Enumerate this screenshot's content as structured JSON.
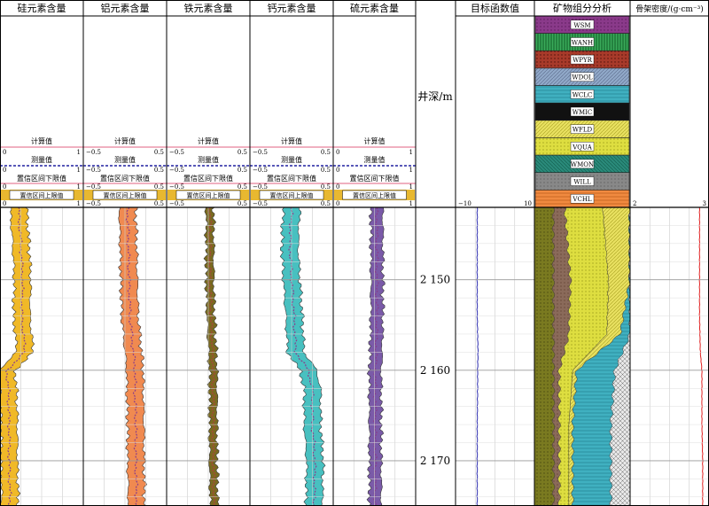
{
  "depth_track": {
    "title": "井深/m",
    "ticks": [
      "2 150",
      "2 160",
      "2 170"
    ],
    "tick_values": [
      2150,
      2160,
      2170
    ]
  },
  "legend_rows": {
    "calc": "计算值",
    "meas": "测量值",
    "lower": "置信区间下限值",
    "upper": "置信区间上限值"
  },
  "element_tracks": [
    {
      "title": "硅元素含量",
      "min": "0",
      "max": "1",
      "fill": "#f0b928",
      "line": "#8a3d8a"
    },
    {
      "title": "铝元素含量",
      "min": "−0.5",
      "max": "0.5",
      "fill": "#f08a50",
      "line": "#8a3d8a"
    },
    {
      "title": "铁元素含量",
      "min": "−0.5",
      "max": "0.5",
      "fill": "#7a6a20",
      "line": "#b04040"
    },
    {
      "title": "钙元素含量",
      "min": "−0.5",
      "max": "0.5",
      "fill": "#48c0c0",
      "line": "#8a3d8a"
    },
    {
      "title": "硫元素含量",
      "min": "0",
      "max": "1",
      "fill": "#7a5aa8",
      "line": "#8a3d8a"
    }
  ],
  "objective_track": {
    "title": "目标函数值",
    "min": "−10",
    "max": "10",
    "color": "#4040c0"
  },
  "mineral_track": {
    "title": "矿物组分分析",
    "minerals": [
      {
        "code": "WSM",
        "color": "#8a3a8a"
      },
      {
        "code": "WANH",
        "color": "#3aaa5a"
      },
      {
        "code": "WPYR",
        "color": "#a83a2a"
      },
      {
        "code": "WDOL",
        "color": "#90a8c8"
      },
      {
        "code": "WCLC",
        "color": "#40b0c0"
      },
      {
        "code": "WMIC",
        "color": "#111111"
      },
      {
        "code": "WFLD",
        "color": "#e8e060"
      },
      {
        "code": "VQUA",
        "color": "#dede40"
      },
      {
        "code": "WMON",
        "color": "#2a8a7a"
      },
      {
        "code": "WILL",
        "color": "#888888"
      },
      {
        "code": "VCHL",
        "color": "#f08a40"
      }
    ]
  },
  "density_track": {
    "title": "骨架密度/(g·cm⁻³)",
    "min": "2",
    "max": "3",
    "color": "#e02020"
  },
  "chart_data": {
    "type": "line",
    "y_axis": {
      "label": "井深/m",
      "range_approx": [
        2142,
        2175
      ],
      "ticks": [
        2150,
        2160,
        2170
      ]
    },
    "depth": [
      2142,
      2146,
      2150,
      2154,
      2158,
      2160,
      2162,
      2166,
      2170,
      2175
    ],
    "series": [
      {
        "name": "硅元素含量",
        "xlim": [
          0,
          1
        ],
        "values": [
          0.22,
          0.25,
          0.27,
          0.26,
          0.3,
          0.08,
          0.1,
          0.11,
          0.11,
          0.12
        ]
      },
      {
        "name": "铝元素含量",
        "xlim": [
          -0.5,
          0.5
        ],
        "values": [
          0.03,
          0.04,
          0.05,
          0.06,
          0.1,
          0.12,
          0.12,
          0.13,
          0.13,
          0.14
        ]
      },
      {
        "name": "铁元素含量",
        "xlim": [
          -0.5,
          0.5
        ],
        "values": [
          0.02,
          0.02,
          0.02,
          0.03,
          0.05,
          0.06,
          0.06,
          0.06,
          0.06,
          0.07
        ]
      },
      {
        "name": "钙元素含量",
        "xlim": [
          -0.5,
          0.5
        ],
        "values": [
          0.0,
          -0.02,
          0.0,
          0.03,
          0.05,
          0.2,
          0.25,
          0.25,
          0.28,
          0.27
        ]
      },
      {
        "name": "硫元素含量",
        "xlim": [
          0,
          1
        ],
        "values": [
          0.53,
          0.53,
          0.53,
          0.53,
          0.52,
          0.51,
          0.51,
          0.51,
          0.51,
          0.51
        ]
      },
      {
        "name": "目标函数值",
        "xlim": [
          -10,
          10
        ],
        "values": [
          -4.5,
          -4.5,
          -4.5,
          -4.5,
          -4.3,
          -4.4,
          -4.4,
          -4.5,
          -4.5,
          -4.5
        ]
      },
      {
        "name": "骨架密度",
        "xlim": [
          2,
          3
        ],
        "values": [
          2.88,
          2.88,
          2.88,
          2.88,
          2.89,
          2.91,
          2.91,
          2.91,
          2.92,
          2.92
        ]
      }
    ],
    "stacked_minerals": {
      "components": [
        "WMON",
        "WILL",
        "VQUA",
        "WFLD",
        "WCLC",
        "WDOL"
      ],
      "depth": [
        2142,
        2150,
        2156,
        2160,
        2166,
        2175
      ],
      "fractions": [
        [
          0.2,
          0.12,
          0.4,
          0.28,
          0.0,
          0.0
        ],
        [
          0.2,
          0.18,
          0.4,
          0.22,
          0.0,
          0.0
        ],
        [
          0.2,
          0.16,
          0.4,
          0.14,
          0.1,
          0.0
        ],
        [
          0.2,
          0.06,
          0.14,
          0.04,
          0.4,
          0.16
        ],
        [
          0.2,
          0.06,
          0.1,
          0.04,
          0.4,
          0.2
        ],
        [
          0.2,
          0.06,
          0.1,
          0.04,
          0.4,
          0.2
        ]
      ]
    }
  }
}
